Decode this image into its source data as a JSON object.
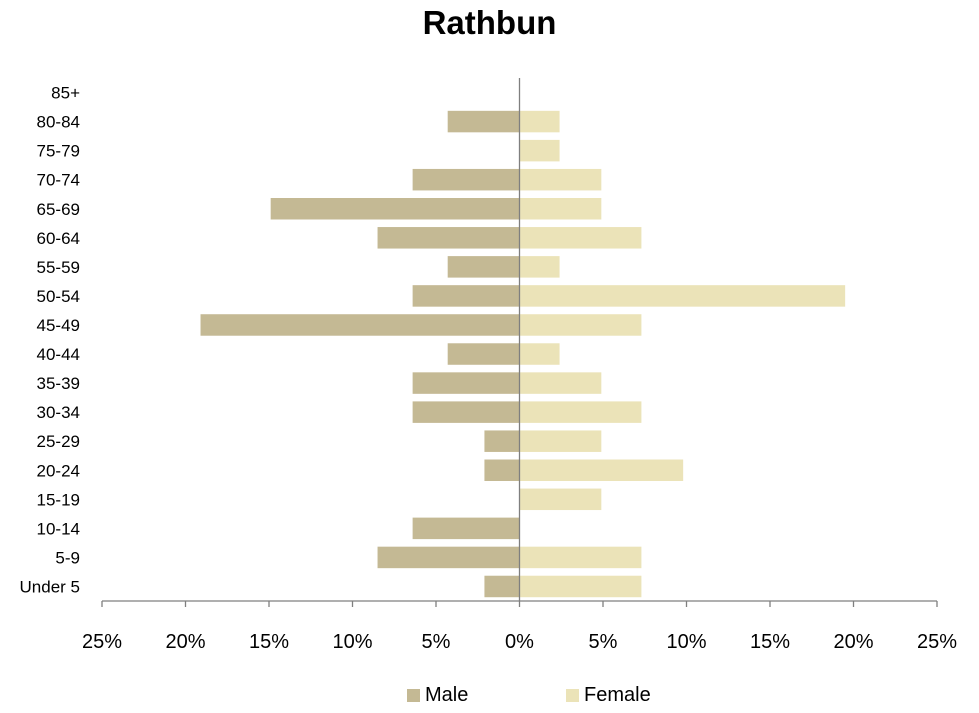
{
  "chart_data": {
    "type": "bar",
    "orientation": "horizontal",
    "title": "Rathbun",
    "xlabel": "",
    "ylabel": "",
    "categories": [
      "Under 5",
      "5-9",
      "10-14",
      "15-19",
      "20-24",
      "25-29",
      "30-34",
      "35-39",
      "40-44",
      "45-49",
      "50-54",
      "55-59",
      "60-64",
      "65-69",
      "70-74",
      "75-79",
      "80-84",
      "85+"
    ],
    "series": [
      {
        "name": "Male",
        "color": "#c4b994",
        "direction": "left",
        "values": [
          2.1,
          8.5,
          6.4,
          0,
          2.1,
          2.1,
          6.4,
          6.4,
          4.3,
          19.1,
          6.4,
          4.3,
          8.5,
          14.9,
          6.4,
          0,
          4.3,
          0
        ]
      },
      {
        "name": "Female",
        "color": "#ebe3b8",
        "direction": "right",
        "values": [
          7.3,
          7.3,
          0,
          4.9,
          9.8,
          4.9,
          7.3,
          4.9,
          2.4,
          7.3,
          19.5,
          2.4,
          7.3,
          4.9,
          4.9,
          2.4,
          2.4,
          0
        ]
      }
    ],
    "xlim": [
      -25,
      25
    ],
    "xticks": [
      -25,
      -20,
      -15,
      -10,
      -5,
      0,
      5,
      10,
      15,
      20,
      25
    ],
    "xtick_labels": [
      "25%",
      "20%",
      "15%",
      "10%",
      "5%",
      "0%",
      "5%",
      "10%",
      "15%",
      "20%",
      "25%"
    ],
    "grid": false,
    "legend_position": "bottom"
  }
}
